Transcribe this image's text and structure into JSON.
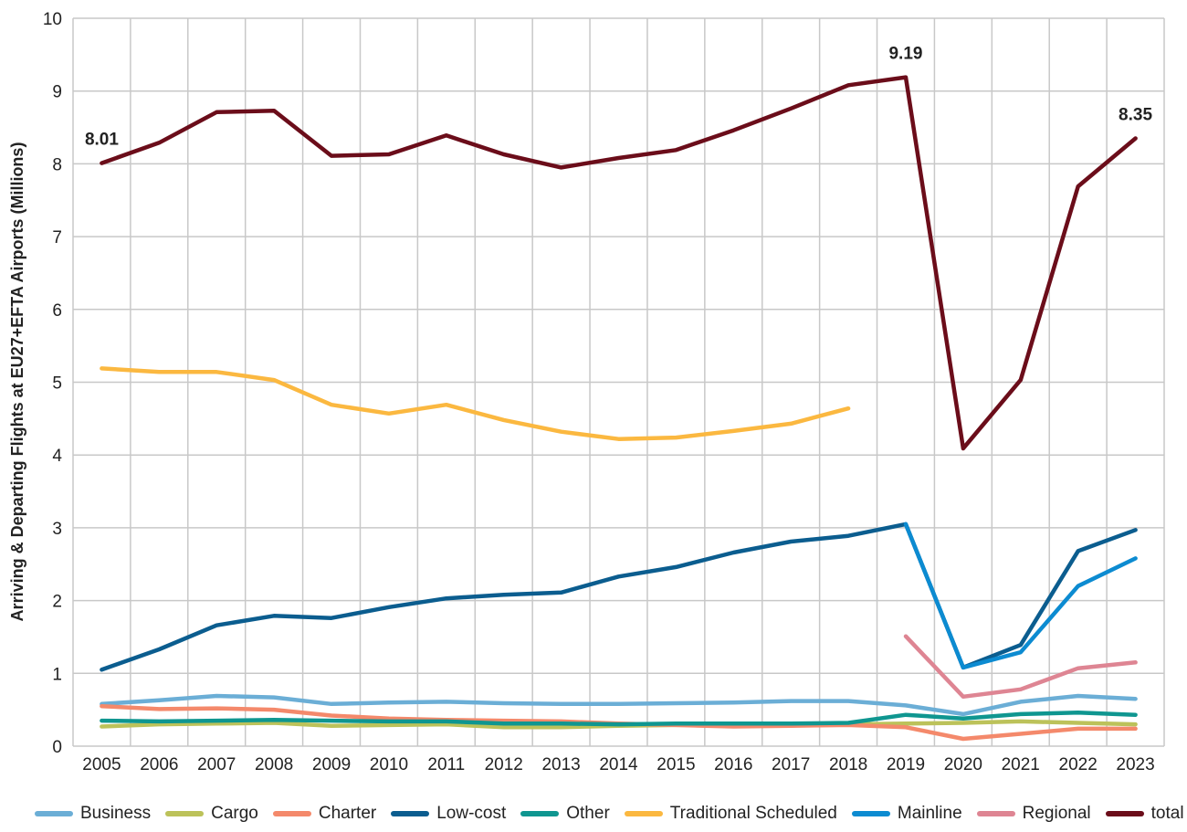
{
  "chart_data": {
    "type": "line",
    "title": "",
    "xlabel": "",
    "ylabel": "Arriving & Departing Flights at EU27+EFTA Airports (Millions)",
    "ylim": [
      0,
      10
    ],
    "yticks": [
      "0",
      "1",
      "2",
      "3",
      "4",
      "5",
      "6",
      "7",
      "8",
      "9",
      "10"
    ],
    "grid": true,
    "legend_position": "bottom",
    "categories": [
      "2005",
      "2006",
      "2007",
      "2008",
      "2009",
      "2010",
      "2011",
      "2012",
      "2013",
      "2014",
      "2015",
      "2016",
      "2017",
      "2018",
      "2019",
      "2020",
      "2021",
      "2022",
      "2023"
    ],
    "series": [
      {
        "name": "Business",
        "color": "#6baed6",
        "values": [
          0.58,
          0.63,
          0.69,
          0.67,
          0.58,
          0.6,
          0.61,
          0.59,
          0.58,
          0.58,
          0.59,
          0.6,
          0.62,
          0.62,
          0.56,
          0.44,
          0.61,
          0.69,
          0.65
        ]
      },
      {
        "name": "Cargo",
        "color": "#bcc25a",
        "values": [
          0.27,
          0.3,
          0.31,
          0.32,
          0.28,
          0.29,
          0.3,
          0.26,
          0.26,
          0.28,
          0.29,
          0.29,
          0.29,
          0.3,
          0.31,
          0.32,
          0.34,
          0.32,
          0.3
        ]
      },
      {
        "name": "Charter",
        "color": "#f4896b",
        "values": [
          0.55,
          0.51,
          0.52,
          0.5,
          0.42,
          0.38,
          0.36,
          0.35,
          0.34,
          0.31,
          0.29,
          0.27,
          0.28,
          0.29,
          0.26,
          0.1,
          0.17,
          0.24,
          0.24
        ]
      },
      {
        "name": "Low-cost",
        "color": "#0b5d8f",
        "values": [
          1.05,
          1.33,
          1.66,
          1.79,
          1.76,
          1.91,
          2.03,
          2.08,
          2.11,
          2.33,
          2.46,
          2.66,
          2.81,
          2.89,
          3.05,
          1.08,
          1.39,
          2.68,
          2.97
        ]
      },
      {
        "name": "Other",
        "color": "#0f9690",
        "values": [
          0.35,
          0.34,
          0.35,
          0.36,
          0.35,
          0.34,
          0.34,
          0.31,
          0.31,
          0.3,
          0.31,
          0.31,
          0.31,
          0.32,
          0.43,
          0.38,
          0.44,
          0.46,
          0.43
        ]
      },
      {
        "name": "Traditional Scheduled",
        "color": "#fbb840",
        "values": [
          5.19,
          5.14,
          5.14,
          5.03,
          4.69,
          4.57,
          4.69,
          4.48,
          4.32,
          4.22,
          4.24,
          4.33,
          4.43,
          4.64,
          null,
          null,
          null,
          null,
          null
        ]
      },
      {
        "name": "Mainline",
        "color": "#0c8bd1",
        "values": [
          null,
          null,
          null,
          null,
          null,
          null,
          null,
          null,
          null,
          null,
          null,
          null,
          null,
          null,
          3.05,
          1.08,
          1.29,
          2.2,
          2.58
        ]
      },
      {
        "name": "Regional",
        "color": "#de8593",
        "values": [
          null,
          null,
          null,
          null,
          null,
          null,
          null,
          null,
          null,
          null,
          null,
          null,
          null,
          null,
          1.51,
          0.68,
          0.78,
          1.07,
          1.15
        ]
      },
      {
        "name": "total",
        "color": "#6b0d1a",
        "values": [
          8.01,
          8.29,
          8.71,
          8.73,
          8.11,
          8.13,
          8.39,
          8.13,
          7.95,
          8.08,
          8.19,
          8.46,
          8.76,
          9.08,
          9.19,
          4.09,
          5.03,
          7.69,
          8.35
        ]
      }
    ],
    "annotations": [
      {
        "series": "total",
        "x": "2005",
        "text": "8.01"
      },
      {
        "series": "total",
        "x": "2019",
        "text": "9.19"
      },
      {
        "series": "total",
        "x": "2023",
        "text": "8.35"
      }
    ]
  }
}
